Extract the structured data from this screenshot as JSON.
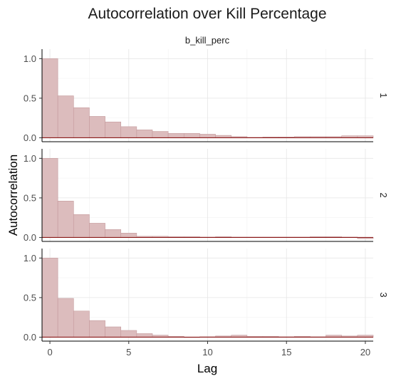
{
  "chart_data": {
    "type": "bar",
    "title": "Autocorrelation over Kill Percentage",
    "facet_label": "b_kill_perc",
    "xlabel": "Lag",
    "ylabel": "Autocorrelation",
    "xlim": [
      -0.5,
      20.5
    ],
    "ylim": [
      -0.05,
      1.12
    ],
    "x_ticks": [
      0,
      5,
      10,
      15,
      20
    ],
    "y_ticks": [
      0.0,
      0.5,
      1.0
    ],
    "grid": true,
    "colors": {
      "bar_fill": "#dcbcbd",
      "bar_stroke": "#c49a9c",
      "zero_line": "#8b1a1a"
    },
    "lags": [
      0,
      1,
      2,
      3,
      4,
      5,
      6,
      7,
      8,
      9,
      10,
      11,
      12,
      13,
      14,
      15,
      16,
      17,
      18,
      19,
      20
    ],
    "series": [
      {
        "name": "1",
        "values": [
          1.0,
          0.53,
          0.38,
          0.27,
          0.2,
          0.14,
          0.1,
          0.08,
          0.055,
          0.055,
          0.045,
          0.03,
          0.015,
          0.005,
          0.01,
          0.01,
          0.015,
          0.015,
          0.015,
          0.025,
          0.025
        ]
      },
      {
        "name": "2",
        "values": [
          1.0,
          0.46,
          0.29,
          0.18,
          0.1,
          0.055,
          0.015,
          0.015,
          0.01,
          0.01,
          0.005,
          0.01,
          0.005,
          0.005,
          0.005,
          0.005,
          0.005,
          0.01,
          0.01,
          0.005,
          -0.015
        ]
      },
      {
        "name": "3",
        "values": [
          1.0,
          0.49,
          0.33,
          0.21,
          0.13,
          0.085,
          0.045,
          0.025,
          0.01,
          -0.005,
          0.005,
          0.015,
          0.025,
          0.01,
          0.01,
          0.005,
          0.01,
          0.005,
          0.025,
          0.015,
          0.025
        ]
      }
    ]
  }
}
